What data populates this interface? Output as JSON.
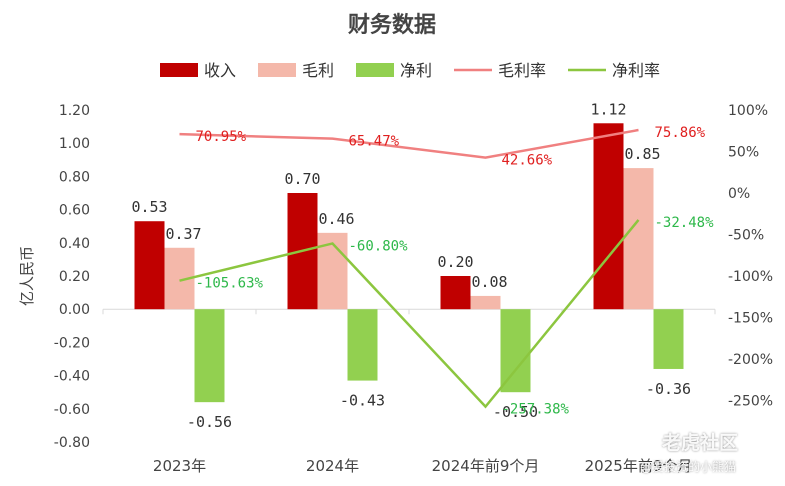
{
  "chart_data": {
    "type": "bar",
    "title": "财务数据",
    "ylabel": "亿人民币",
    "categories": [
      "2023年",
      "2024年",
      "2024年前9个月",
      "2025年前9个月"
    ],
    "ylim": [
      -0.8,
      1.2
    ],
    "y_ticks": [
      "1.20",
      "1.00",
      "0.80",
      "0.60",
      "0.40",
      "0.20",
      "0.00",
      "-0.20",
      "-0.40",
      "-0.60",
      "-0.80"
    ],
    "y2lim": [
      -300,
      100
    ],
    "y2_ticks": [
      "100%",
      "50%",
      "0%",
      "-50%",
      "-100%",
      "-150%",
      "-200%",
      "-250%"
    ],
    "series": [
      {
        "name": "收入",
        "kind": "bar",
        "color": "#c00000",
        "values": [
          0.53,
          0.7,
          0.2,
          1.12
        ],
        "labels": [
          "0.53",
          "0.70",
          "0.20",
          "1.12"
        ]
      },
      {
        "name": "毛利",
        "kind": "bar",
        "color": "#f4b8aa",
        "values": [
          0.37,
          0.46,
          0.08,
          0.85
        ],
        "labels": [
          "0.37",
          "0.46",
          "0.08",
          "0.85"
        ]
      },
      {
        "name": "净利",
        "kind": "bar",
        "color": "#92d050",
        "values": [
          -0.56,
          -0.43,
          -0.5,
          -0.36
        ],
        "labels": [
          "-0.56",
          "-0.43",
          "-0.50",
          "-0.36"
        ]
      },
      {
        "name": "毛利率",
        "kind": "line",
        "axis": "right",
        "color": "#f08080",
        "label_color": "#e02020",
        "values": [
          70.95,
          65.47,
          42.66,
          75.86
        ],
        "labels": [
          "70.95%",
          "65.47%",
          "42.66%",
          "75.86%"
        ]
      },
      {
        "name": "净利率",
        "kind": "line",
        "axis": "right",
        "color": "#8cc63f",
        "label_color": "#2eb84a",
        "values": [
          -105.63,
          -60.8,
          -257.38,
          -32.48
        ],
        "labels": [
          "-105.63%",
          "-60.80%",
          "-257.38%",
          "-32.48%"
        ]
      }
    ],
    "legend": "top"
  },
  "watermark": {
    "brand": "老虎社区",
    "user": "@爱投资的小熊猫"
  }
}
